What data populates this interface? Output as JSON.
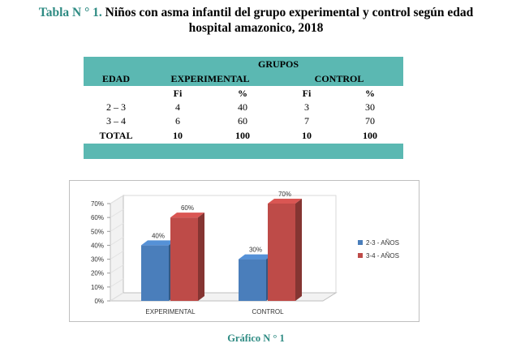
{
  "title": {
    "label": "Tabla N ° 1.",
    "line1": "Niños con asma infantil del grupo experimental y control según edad",
    "line2": "hospital amazonico, 2018"
  },
  "table": {
    "group_header": "GRUPOS",
    "col_edad": "EDAD",
    "col_experimental": "EXPERIMENTAL",
    "col_control": "CONTROL",
    "sub_fi": "Fi",
    "sub_pct": "%",
    "rows": [
      {
        "edad": "2 – 3",
        "exp_fi": "4",
        "exp_pct": "40",
        "ctl_fi": "3",
        "ctl_pct": "30"
      },
      {
        "edad": "3 – 4",
        "exp_fi": "6",
        "exp_pct": "60",
        "ctl_fi": "7",
        "ctl_pct": "70"
      },
      {
        "edad": "TOTAL",
        "exp_fi": "10",
        "exp_pct": "100",
        "ctl_fi": "10",
        "ctl_pct": "100"
      }
    ],
    "colors": {
      "header": "#5bb8b2"
    }
  },
  "chart_data": {
    "type": "bar",
    "title": "",
    "xlabel": "",
    "ylabel": "",
    "categories": [
      "EXPERIMENTAL",
      "CONTROL"
    ],
    "series": [
      {
        "name": "2-3 - AÑOS",
        "values": [
          40,
          30
        ],
        "labels": [
          "40%",
          "30%"
        ],
        "color": "#4a7ebb"
      },
      {
        "name": "3-4 - AÑOS",
        "values": [
          60,
          70
        ],
        "labels": [
          "60%",
          "70%"
        ],
        "color": "#be4b48"
      }
    ],
    "yticks": [
      "0%",
      "10%",
      "20%",
      "30%",
      "40%",
      "50%",
      "60%",
      "70%"
    ],
    "ylim": [
      0,
      70
    ],
    "grid": false,
    "legend": "right",
    "style": "3d"
  },
  "caption": "Gráfico N ° 1"
}
